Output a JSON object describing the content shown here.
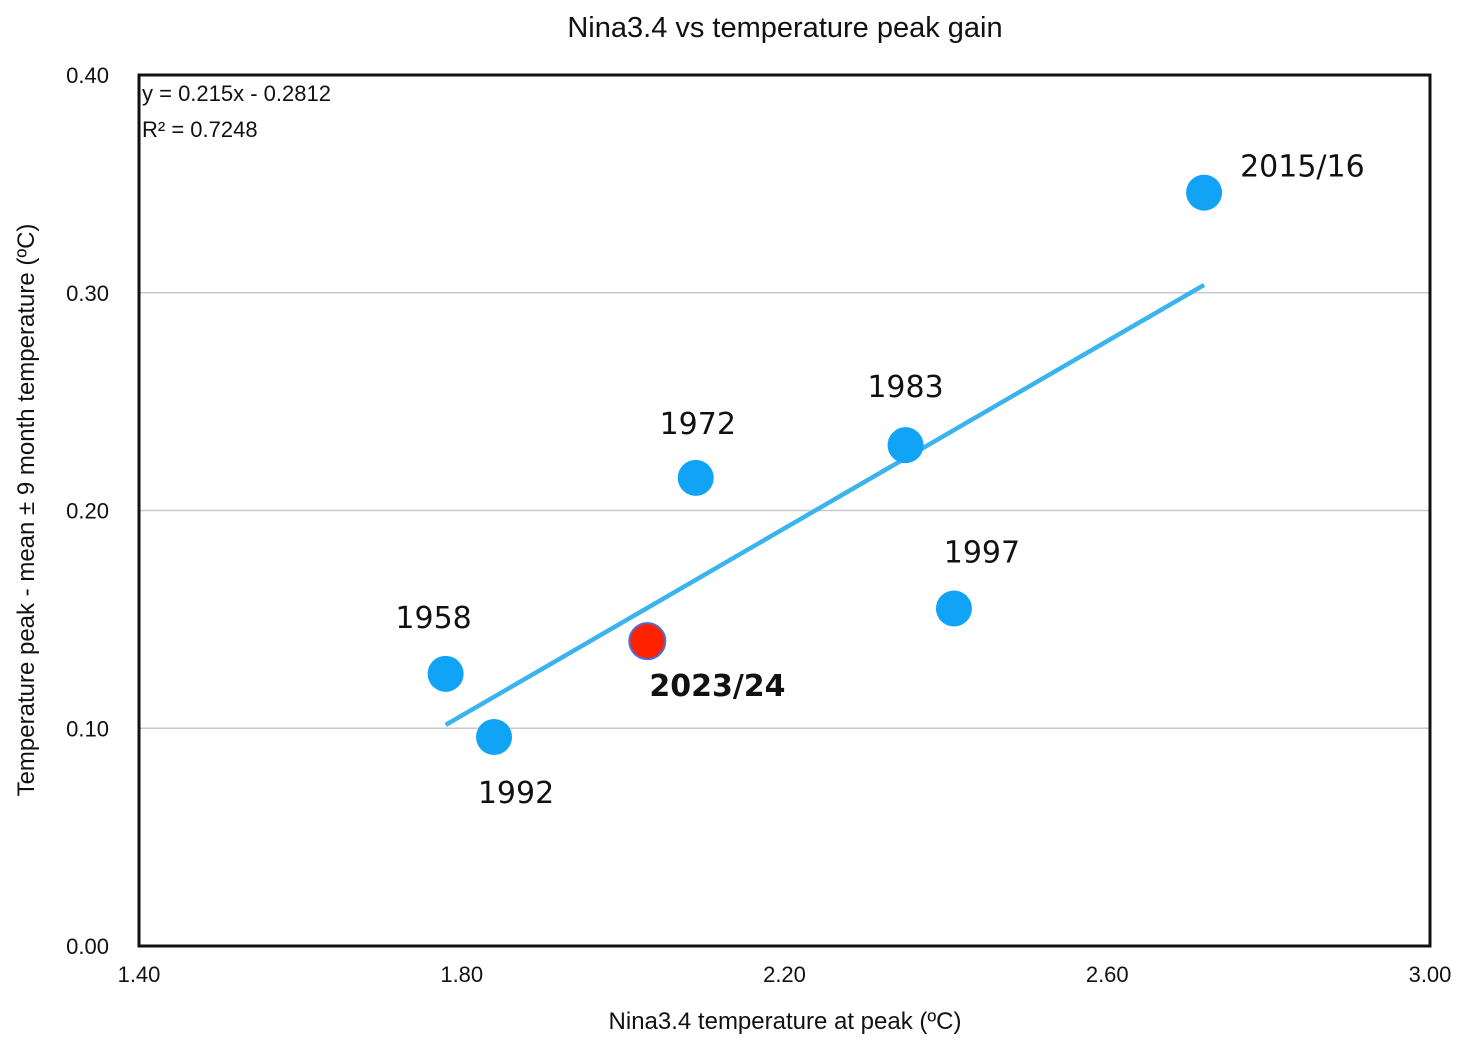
{
  "chart_data": {
    "type": "scatter",
    "title": "Nina3.4 vs temperature peak gain",
    "xlabel": "Nina3.4 temperature at peak (ºC)",
    "ylabel": "Temperature peak - mean ± 9 month temperature (ºC)",
    "xlim": [
      1.4,
      3.0
    ],
    "ylim": [
      0.0,
      0.4
    ],
    "x_ticks": [
      "1.40",
      "1.80",
      "2.20",
      "2.60",
      "3.00"
    ],
    "y_ticks": [
      "0.00",
      "0.10",
      "0.20",
      "0.30",
      "0.40"
    ],
    "grid": "horizontal",
    "point_color": "#11A3F5",
    "highlight_color": "#FF2200",
    "trendline_color": "#3BB4EE",
    "points": [
      {
        "label": "1958",
        "x": 1.78,
        "y": 0.125,
        "highlight": false
      },
      {
        "label": "1992",
        "x": 1.84,
        "y": 0.096,
        "highlight": false
      },
      {
        "label": "1972",
        "x": 2.09,
        "y": 0.215,
        "highlight": false
      },
      {
        "label": "1983",
        "x": 2.35,
        "y": 0.23,
        "highlight": false
      },
      {
        "label": "1997",
        "x": 2.41,
        "y": 0.155,
        "highlight": false
      },
      {
        "label": "2015/16",
        "x": 2.72,
        "y": 0.346,
        "highlight": false
      },
      {
        "label": "2023/24",
        "x": 2.03,
        "y": 0.14,
        "highlight": true
      }
    ],
    "trendline": {
      "equation": "y = 0.215x - 0.2812",
      "r_squared": "R² = 0.7248",
      "slope": 0.215,
      "intercept": -0.2812,
      "x_range": [
        1.78,
        2.72
      ]
    }
  }
}
